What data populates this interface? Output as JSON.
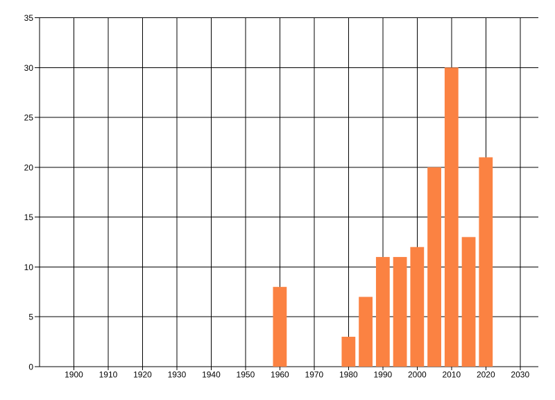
{
  "chart_data": {
    "type": "bar",
    "title": "",
    "xlabel": "",
    "ylabel": "",
    "x": [
      1960,
      1980,
      1985,
      1990,
      1995,
      2000,
      2005,
      2010,
      2015,
      2020
    ],
    "values": [
      8,
      3,
      7,
      11,
      11,
      12,
      20,
      30,
      13,
      21
    ],
    "bar_width_years": 4,
    "xlim": [
      1890,
      2035.3
    ],
    "ylim": [
      0,
      35
    ],
    "xticks": [
      1900,
      1910,
      1920,
      1930,
      1940,
      1950,
      1960,
      1970,
      1980,
      1990,
      2000,
      2010,
      2020,
      2030
    ],
    "yticks": [
      0,
      5,
      10,
      15,
      20,
      25,
      30,
      35
    ],
    "xtick_labels": [
      "1900",
      "1910",
      "1920",
      "1930",
      "1940",
      "1950",
      "1960",
      "1970",
      "1980",
      "1990",
      "2000",
      "2010",
      "2020",
      "2030"
    ],
    "ytick_labels": [
      "0",
      "5",
      "10",
      "15",
      "20",
      "25",
      "30",
      "35"
    ],
    "grid": true,
    "legend": "none",
    "colors": {
      "bar": "#FB8242",
      "grid": "#000000",
      "axis": "#000000",
      "text": "#000000",
      "background": "#FFFFFF"
    }
  }
}
